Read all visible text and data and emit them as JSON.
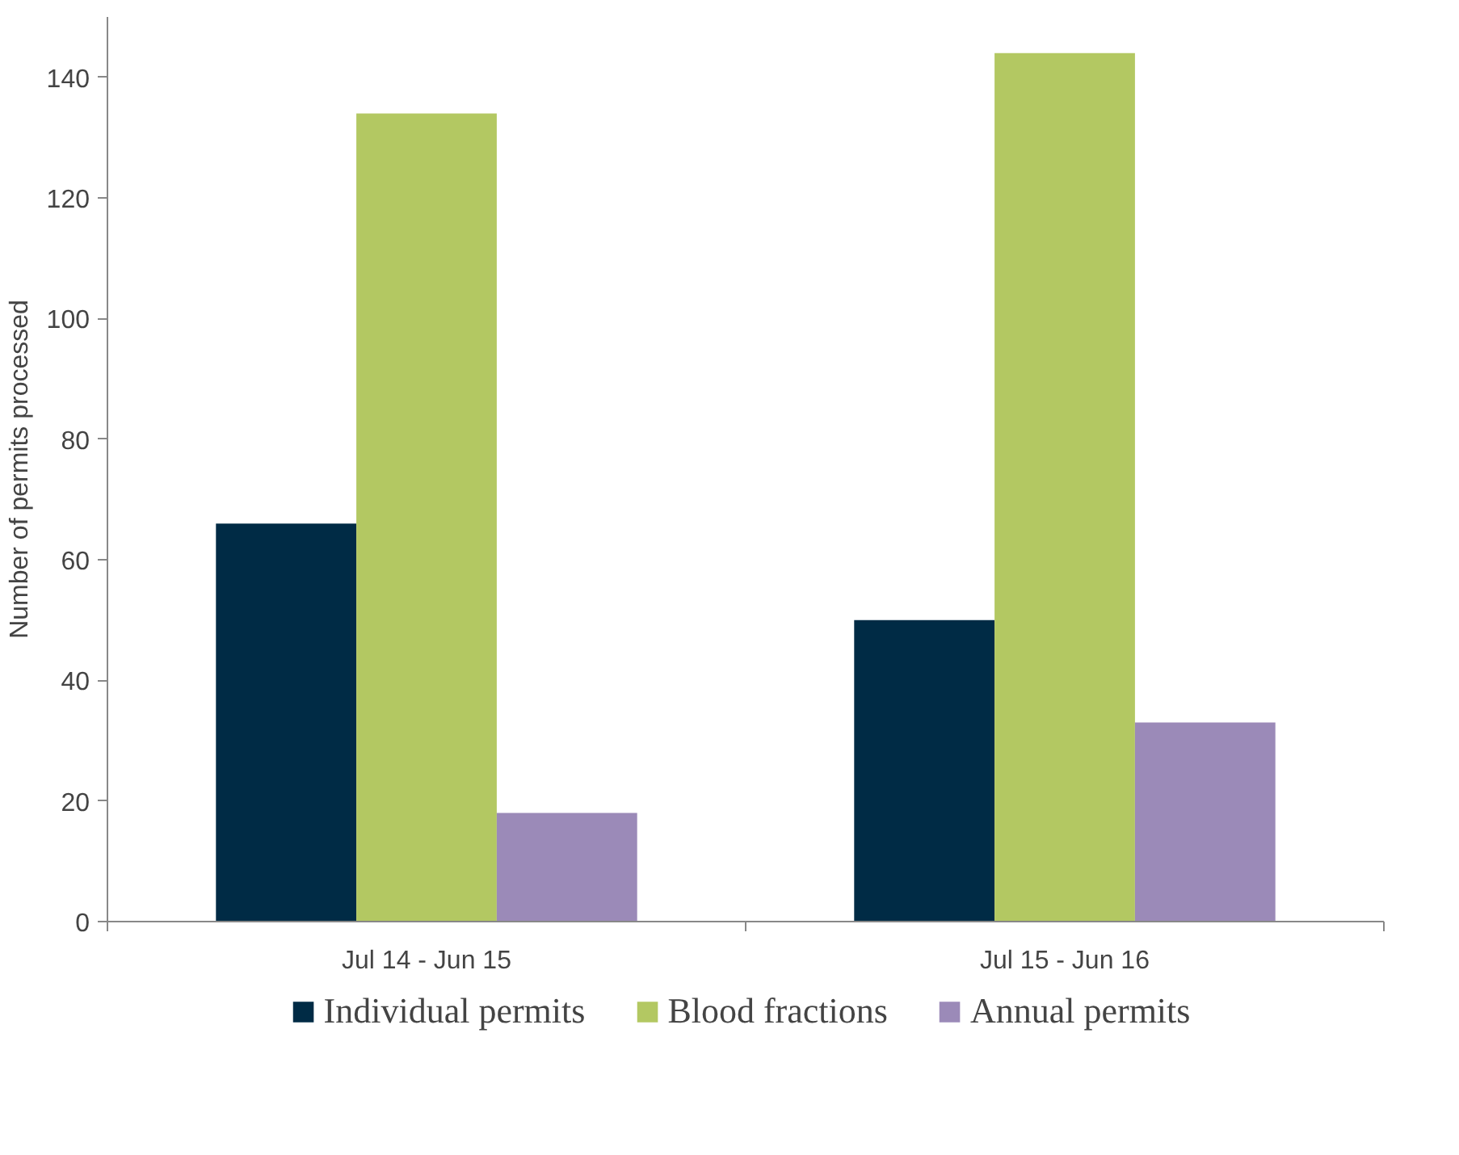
{
  "chart_data": {
    "type": "bar",
    "ylabel": "Number of permits processed",
    "categories": [
      "Jul 14 - Jun 15",
      "Jul 15 - Jun 16"
    ],
    "series": [
      {
        "name": "Individual permits",
        "color": "#002b45",
        "values": [
          66,
          50
        ]
      },
      {
        "name": "Blood fractions",
        "color": "#b3c862",
        "values": [
          134,
          144
        ]
      },
      {
        "name": "Annual permits",
        "color": "#9b8ab8",
        "values": [
          18,
          33
        ]
      }
    ],
    "ylim": [
      0,
      150
    ],
    "yticks": [
      0,
      20,
      40,
      60,
      80,
      100,
      120,
      140
    ],
    "grid": false,
    "legend": "bottom"
  }
}
